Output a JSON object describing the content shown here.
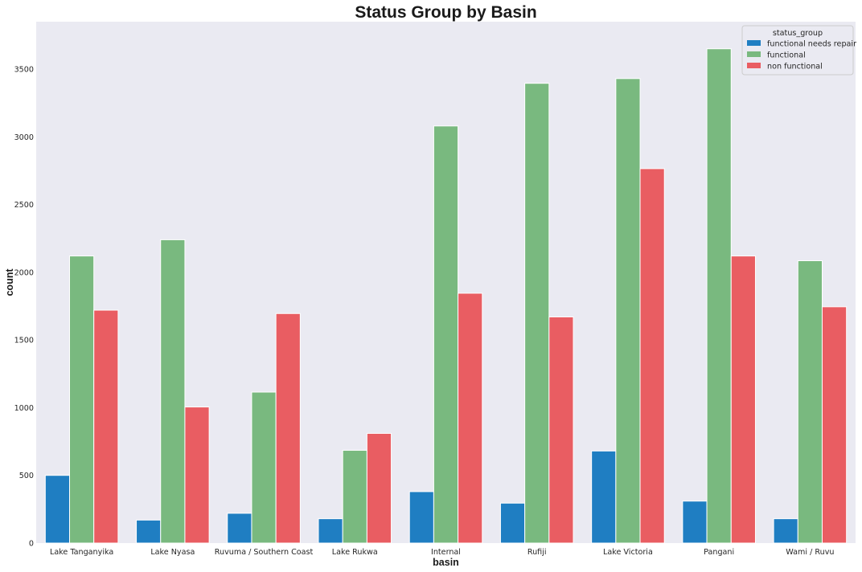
{
  "chart_data": {
    "type": "bar",
    "title": "Status Group by Basin",
    "xlabel": "basin",
    "ylabel": "count",
    "categories": [
      "Lake Tanganyika",
      "Lake Nyasa",
      "Ruvuma / Southern Coast",
      "Lake Rukwa",
      "Internal",
      "Rufiji",
      "Lake Victoria",
      "Pangani",
      "Wami / Ruvu"
    ],
    "series": [
      {
        "name": "functional needs repair",
        "color": "#1f7ec2",
        "values": [
          500,
          170,
          220,
          180,
          380,
          295,
          680,
          310,
          180
        ]
      },
      {
        "name": "functional",
        "color": "#79b97f",
        "values": [
          2120,
          2240,
          1115,
          685,
          3080,
          3395,
          3430,
          3650,
          2085
        ]
      },
      {
        "name": "non functional",
        "color": "#e95d62",
        "values": [
          1720,
          1005,
          1695,
          810,
          1845,
          1670,
          2765,
          2120,
          1745
        ]
      }
    ],
    "ylim": [
      0,
      3850
    ],
    "yticks": [
      0,
      500,
      1000,
      1500,
      2000,
      2500,
      3000,
      3500
    ],
    "legend": {
      "title": "status_group",
      "placement": "top-right"
    },
    "grid": false,
    "background": "#eaeaf2"
  }
}
